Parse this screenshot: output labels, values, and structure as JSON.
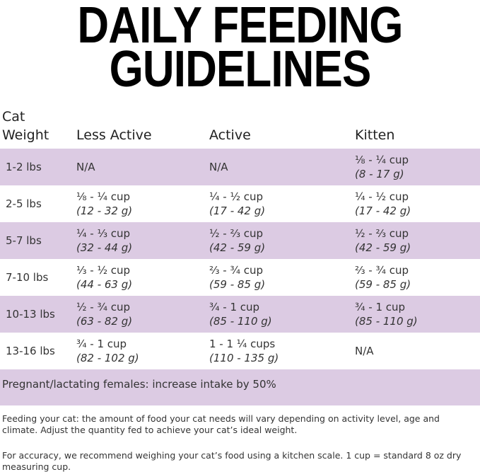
{
  "header": {
    "title_lines": [
      "DAILY FEEDING",
      "GUIDELINES"
    ]
  },
  "table": {
    "columns": [
      "Cat Weight",
      "Less Active",
      "Active",
      "Kitten"
    ],
    "rows": [
      [
        "1-2 lbs",
        "N/A",
        "N/A",
        {
          "amount": "⅛ - ¼ cup",
          "grams": "(8 - 17 g)"
        }
      ],
      [
        "2-5 lbs",
        {
          "amount": "⅛ - ¼ cup",
          "grams": "(12 - 32 g)"
        },
        {
          "amount": "¼ - ½ cup",
          "grams": "(17 - 42 g)"
        },
        {
          "amount": "¼ - ½ cup",
          "grams": "(17 - 42 g)"
        }
      ],
      [
        "5-7 lbs",
        {
          "amount": "¼ - ⅓ cup",
          "grams": "(32 - 44 g)"
        },
        {
          "amount": "½ - ⅔ cup",
          "grams": "(42 - 59 g)"
        },
        {
          "amount": "½ - ⅔ cup",
          "grams": "(42 - 59 g)"
        }
      ],
      [
        "7-10 lbs",
        {
          "amount": "⅓ - ½ cup",
          "grams": "(44 - 63 g)"
        },
        {
          "amount": "⅔ - ¾ cup",
          "grams": "(59 - 85 g)"
        },
        {
          "amount": "⅔ - ¾ cup",
          "grams": "(59 - 85 g)"
        }
      ],
      [
        "10-13 lbs",
        {
          "amount": "½ - ¾ cup",
          "grams": "(63 - 82 g)"
        },
        {
          "amount": "¾ - 1 cup",
          "grams": "(85 - 110 g)"
        },
        {
          "amount": "¾ - 1 cup",
          "grams": "(85 - 110 g)"
        }
      ],
      [
        "13-16 lbs",
        {
          "amount": "¾ - 1 cup",
          "grams": "(82 - 102 g)"
        },
        {
          "amount": "1 - 1 ¼ cups",
          "grams": "(110 - 135 g)"
        },
        "N/A"
      ]
    ],
    "note": "Pregnant/lactating females: increase intake by 50%"
  },
  "footer": [
    "Feeding your cat: the amount of food your cat needs will vary depending on activity level, age and climate. Adjust the quantity fed to achieve your cat’s ideal weight.",
    "For accuracy, we recommend weighing your cat’s food using a kitchen scale. 1 cup = standard 8 oz dry measuring cup."
  ]
}
